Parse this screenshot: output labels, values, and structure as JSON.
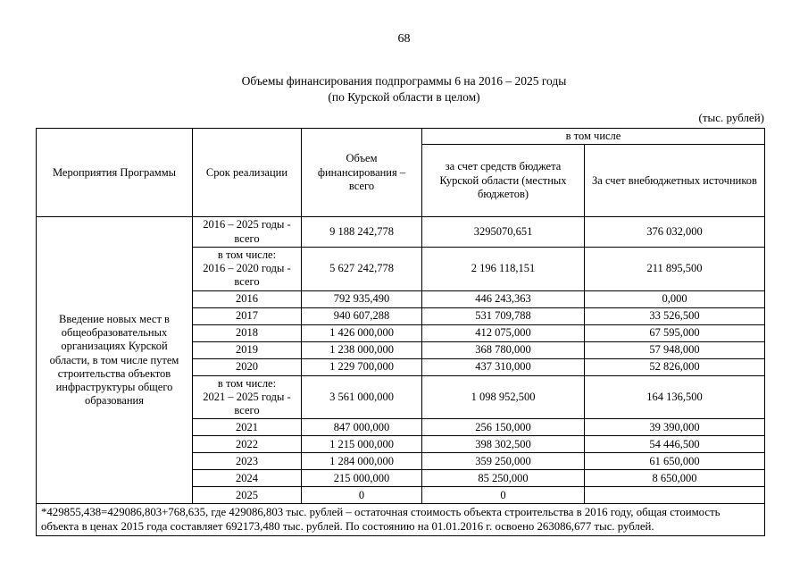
{
  "page": {
    "number": "68",
    "title_line1": "Объемы финансирования подпрограммы 6 на 2016 – 2025 годы",
    "title_line2": "(по Курской области в целом)",
    "units": "(тыс. рублей)"
  },
  "table": {
    "headers": {
      "program": "Мероприятия Программы",
      "period": "Срок реализации",
      "total": "Объем финансирования – всего",
      "including": "в том числе",
      "budget": "за счет средств бюджета Курской области (местных бюджетов)",
      "extra": "За счет внебюджетных источников"
    },
    "program_text": "Введение новых мест в общеобразовательных организациях Курской области, в том числе путем строительства объектов инфраструктуры общего образования",
    "rows": [
      {
        "period": "2016 – 2025 годы -\nвсего",
        "total": "9 188 242,778",
        "budget": "3295070,651",
        "extra": "376 032,000"
      },
      {
        "period": "в том числе:\n2016 – 2020 годы -\nвсего",
        "total": "5 627 242,778",
        "budget": "2 196 118,151",
        "extra": "211 895,500"
      },
      {
        "period": "2016",
        "total": "792 935,490",
        "budget": "446 243,363",
        "extra": "0,000"
      },
      {
        "period": "2017",
        "total": "940 607,288",
        "budget": "531 709,788",
        "extra": "33 526,500"
      },
      {
        "period": "2018",
        "total": "1 426 000,000",
        "budget": "412 075,000",
        "extra": "67 595,000"
      },
      {
        "period": "2019",
        "total": "1 238 000,000",
        "budget": "368 780,000",
        "extra": "57 948,000"
      },
      {
        "period": "2020",
        "total": "1 229 700,000",
        "budget": "437 310,000",
        "extra": "52 826,000"
      },
      {
        "period": "в том числе:\n2021 – 2025 годы -\nвсего",
        "total": "3 561 000,000",
        "budget": "1 098 952,500",
        "extra": "164 136,500"
      },
      {
        "period": "2021",
        "total": "847 000,000",
        "budget": "256 150,000",
        "extra": "39 390,000"
      },
      {
        "period": "2022",
        "total": "1 215 000,000",
        "budget": "398 302,500",
        "extra": "54 446,500"
      },
      {
        "period": "2023",
        "total": "1 284 000,000",
        "budget": "359 250,000",
        "extra": "61 650,000"
      },
      {
        "period": "2024",
        "total": "215 000,000",
        "budget": "85 250,000",
        "extra": "8 650,000"
      },
      {
        "period": "2025",
        "total": "0",
        "budget": "0",
        "extra": ""
      }
    ],
    "footnote": "*429855,438=429086,803+768,635, где 429086,803 тыс. рублей – остаточная стоимость объекта строительства в 2016 году, общая стоимость объекта в ценах 2015 года составляет 692173,480 тыс. рублей. По состоянию на 01.01.2016 г. освоено 263086,677 тыс. рублей."
  }
}
